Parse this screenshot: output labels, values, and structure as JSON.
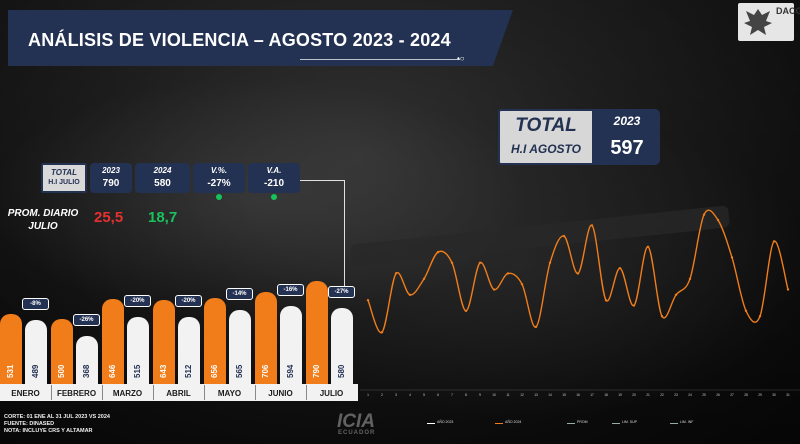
{
  "title": "ANÁLISIS DE VIOLENCIA – AGOSTO 2023 - 2024",
  "logo": "DACG",
  "total_box": {
    "label1": "TOTAL",
    "label2": "H.I AGOSTO",
    "year": "2023",
    "value": "597"
  },
  "comparison": {
    "total_label1": "TOTAL",
    "total_label2": "H.I JULIO",
    "cells": [
      {
        "head": "2023",
        "value": "790"
      },
      {
        "head": "2024",
        "value": "580"
      },
      {
        "head": "V.%.",
        "value": "-27%"
      },
      {
        "head": "V.A.",
        "value": "-210"
      }
    ]
  },
  "prom_diario": {
    "label": "PROM. DIARIO JULIO",
    "v2023": "25,5",
    "v2024": "18,7"
  },
  "colors": {
    "navy": "#233152",
    "orange": "#f07d1a",
    "white_bar": "#f2f2f2",
    "red": "#e53030",
    "green": "#19c25b"
  },
  "chart_data": [
    {
      "type": "bar",
      "categories": [
        "ENERO",
        "FEBRERO",
        "MARZO",
        "ABRIL",
        "MAYO",
        "JUNIO",
        "JULIO"
      ],
      "series": [
        {
          "values": [
            531,
            500,
            646,
            643,
            656,
            706,
            790
          ]
        },
        {
          "values": [
            489,
            368,
            515,
            512,
            565,
            594,
            580
          ]
        }
      ],
      "variation_labels": [
        "-8%",
        "-26%",
        "-20%",
        "-20%",
        "-14%",
        "-16%",
        "-27%"
      ]
    },
    {
      "type": "line",
      "x": [
        1,
        2,
        3,
        4,
        5,
        6,
        7,
        8,
        9,
        10,
        11,
        12,
        13,
        14,
        15,
        16,
        17,
        18,
        19,
        20,
        21,
        22,
        23,
        24,
        25,
        26,
        27,
        28,
        29,
        30,
        31
      ],
      "series": [
        {
          "values": [
            19,
            13,
            24,
            20,
            23,
            28,
            26,
            17,
            26,
            21,
            24,
            22,
            14,
            26,
            31,
            24,
            33,
            19,
            25,
            18,
            29,
            16,
            20,
            23,
            35,
            34,
            27,
            17,
            16,
            30,
            21
          ]
        }
      ],
      "ylim": [
        5,
        40
      ],
      "legend": [
        "AÑO 2023",
        "AÑO 2024",
        "PROM",
        "LIM. SUP",
        "LIM. INF"
      ]
    }
  ],
  "notes": [
    "CORTE: 01 ENE AL 31 JUL 2023 VS 2024",
    "FUENTE: DINASED",
    "NOTA: INCLUYE CRS Y ALTAMAR"
  ],
  "watermark": "ICIA",
  "watermark_sub": "ECUADOR"
}
